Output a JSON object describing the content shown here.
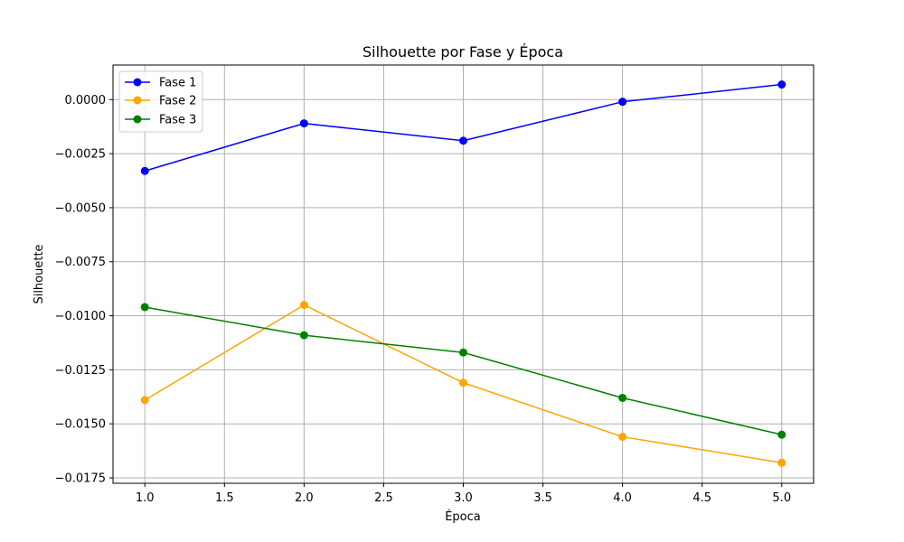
{
  "chart_data": {
    "type": "line",
    "title": "Silhouette por Fase y Época",
    "xlabel": "Época",
    "ylabel": "Silhouette",
    "x": [
      1,
      2,
      3,
      4,
      5
    ],
    "xlim": [
      0.8,
      5.2
    ],
    "ylim": [
      -0.01775,
      0.0016
    ],
    "x_ticks": [
      "1.0",
      "1.5",
      "2.0",
      "2.5",
      "3.0",
      "3.5",
      "4.0",
      "4.5",
      "5.0"
    ],
    "y_ticks": [
      "0.0000",
      "−0.0025",
      "−0.0050",
      "−0.0075",
      "−0.0100",
      "−0.0125",
      "−0.0150",
      "−0.0175"
    ],
    "grid": true,
    "legend_position": "top-left",
    "series": [
      {
        "name": "Fase 1",
        "color": "#0000ff",
        "marker": "circle",
        "values": [
          -0.0033,
          -0.0011,
          -0.0019,
          -0.0001,
          0.0007
        ]
      },
      {
        "name": "Fase 2",
        "color": "#ffa500",
        "marker": "circle",
        "values": [
          -0.0139,
          -0.0095,
          -0.0131,
          -0.0156,
          -0.0168
        ]
      },
      {
        "name": "Fase 3",
        "color": "#008000",
        "marker": "circle",
        "values": [
          -0.0096,
          -0.0109,
          -0.0117,
          -0.0138,
          -0.0155
        ]
      }
    ]
  }
}
